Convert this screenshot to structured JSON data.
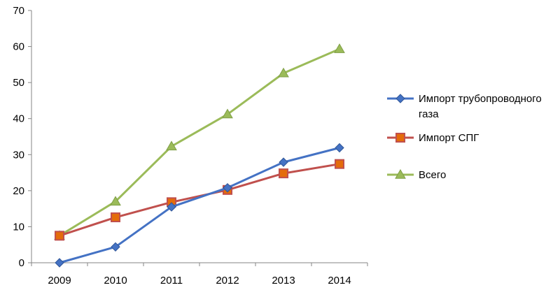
{
  "chart_data": {
    "type": "line",
    "title": "",
    "xlabel": "",
    "ylabel": "",
    "categories": [
      "2009",
      "2010",
      "2011",
      "2012",
      "2013",
      "2014"
    ],
    "ylim": [
      0,
      70
    ],
    "yticks": [
      0,
      10,
      20,
      30,
      40,
      50,
      60,
      70
    ],
    "grid": false,
    "legend_position": "right",
    "series": [
      {
        "name": "Импорт трубопроводного газа",
        "legend_lines": [
          "Импорт трубопроводного",
          "газа"
        ],
        "values": [
          0,
          4.4,
          15.5,
          20.8,
          27.9,
          31.9
        ],
        "color": "#4472C4",
        "marker": "diamond"
      },
      {
        "name": "Импорт СПГ",
        "legend_lines": [
          "Импорт СПГ"
        ],
        "values": [
          7.5,
          12.6,
          16.8,
          20.2,
          24.8,
          27.4
        ],
        "color": "#C0504D",
        "marker": "square"
      },
      {
        "name": "Всего",
        "legend_lines": [
          "Всего"
        ],
        "values": [
          7.5,
          17.0,
          32.3,
          41.2,
          52.6,
          59.3
        ],
        "color": "#9BBB59",
        "marker": "triangle"
      }
    ]
  }
}
